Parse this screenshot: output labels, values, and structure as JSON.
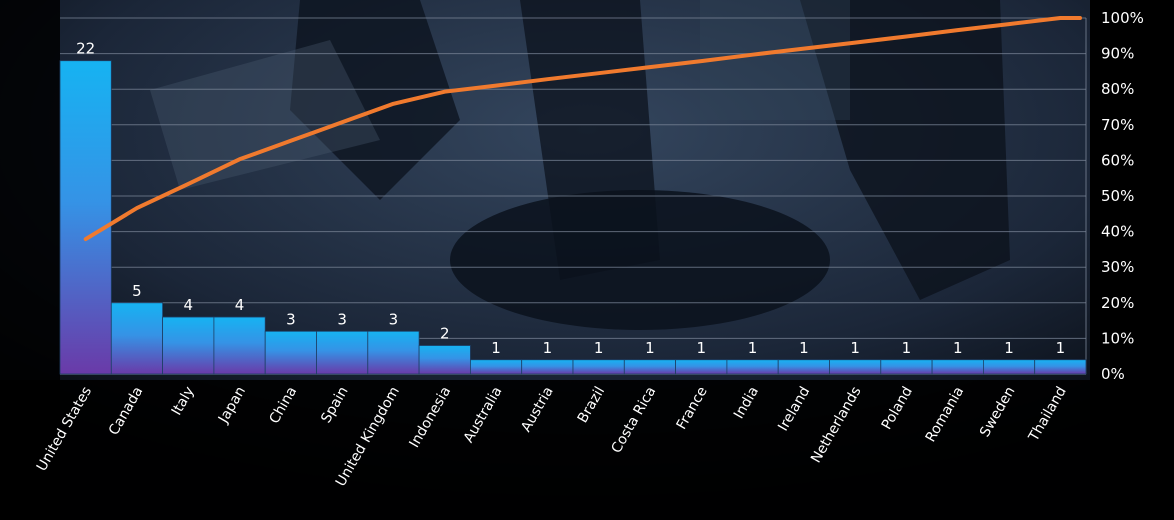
{
  "chart_data": {
    "type": "bar",
    "categories": [
      "United States",
      "Canada",
      "Italy",
      "Japan",
      "China",
      "Spain",
      "United Kingdom",
      "Indonesia",
      "Australia",
      "Austria",
      "Brazil",
      "Costa Rica",
      "France",
      "India",
      "Ireland",
      "Netherlands",
      "Poland",
      "Romania",
      "Sweden",
      "Thailand"
    ],
    "series": [
      {
        "type": "bar",
        "values": [
          22,
          5,
          4,
          4,
          3,
          3,
          3,
          2,
          1,
          1,
          1,
          1,
          1,
          1,
          1,
          1,
          1,
          1,
          1,
          1
        ]
      },
      {
        "type": "line",
        "axis": "right",
        "values": [
          37.9,
          46.6,
          53.4,
          60.3,
          65.5,
          70.7,
          75.9,
          79.3,
          81.0,
          82.8,
          84.5,
          86.2,
          87.9,
          89.7,
          91.4,
          93.1,
          94.8,
          96.6,
          98.3,
          100.0
        ]
      }
    ],
    "ylim": [
      0,
      25
    ],
    "y2lim": [
      0,
      100
    ],
    "y2_ticks": [
      "0%",
      "10%",
      "20%",
      "30%",
      "40%",
      "50%",
      "60%",
      "70%",
      "80%",
      "90%",
      "100%"
    ],
    "grid": true,
    "colors": {
      "bar_top": "#16b3f2",
      "bar_bottom": "#6a3aa8",
      "line": "#f07a2e",
      "grid": "#7a8597"
    }
  }
}
